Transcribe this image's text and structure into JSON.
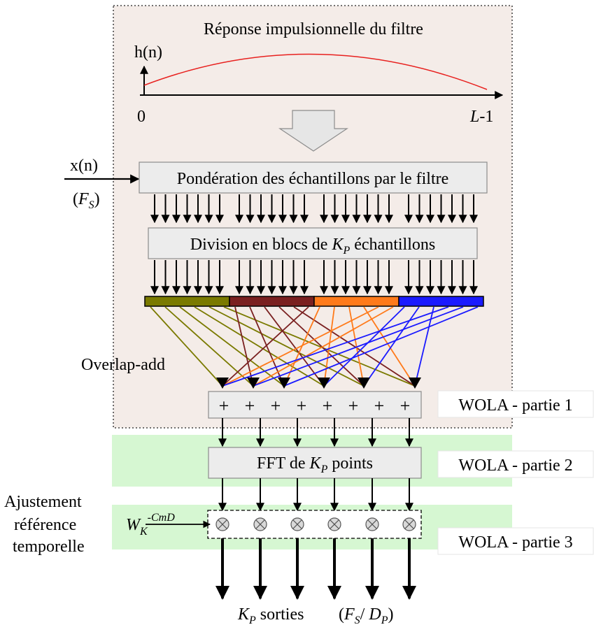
{
  "impulse": {
    "title": "Réponse impulsionnelle du filtre",
    "ylabel": "h(n)",
    "x_start": "0",
    "x_end_var": "L",
    "x_end_suffix": "-1"
  },
  "input": {
    "signal": "x(n)",
    "rate_open": "(",
    "rate_var": "F",
    "rate_sub": "S",
    "rate_close": ")"
  },
  "weighting_box": {
    "label": "Pondération des échantillons par le filtre"
  },
  "division_box": {
    "prefix": "Division en blocs de ",
    "var": "K",
    "sub": "P",
    "suffix": " échantillons"
  },
  "blocks": [
    {
      "color": "#7a7a00"
    },
    {
      "color": "#7a2020"
    },
    {
      "color": "#ff7a1a"
    },
    {
      "color": "#1a1aff"
    }
  ],
  "overlap_label": "Overlap-add",
  "sum_symbol": "+",
  "fft_box": {
    "prefix": "FFT de ",
    "var": "K",
    "sub": "P",
    "suffix": " points"
  },
  "twiddle": {
    "base": "W",
    "sub": "K",
    "sup": "-CmD"
  },
  "adjust_label": [
    "Ajustement",
    "référence",
    "temporelle"
  ],
  "stages": [
    {
      "label": "WOLA - partie 1",
      "bg": "#f4ece8"
    },
    {
      "label": "WOLA - partie 2",
      "bg": "#d6f7d2"
    },
    {
      "label": "WOLA - partie 3",
      "bg": "#d6f7d2"
    }
  ],
  "outputs": {
    "var": "K",
    "sub": "P",
    "text": " sorties",
    "rate_open": "(",
    "rate_var1": "F",
    "rate_sub1": "S",
    "rate_sep": "/ ",
    "rate_var2": "D",
    "rate_sub2": "P",
    "rate_close": ")"
  },
  "colors": {
    "impulse_curve": "#e8201e",
    "box_fill": "#ececec",
    "box_stroke": "#8c8c8c",
    "arrow_shape": "#e6e6e6"
  }
}
